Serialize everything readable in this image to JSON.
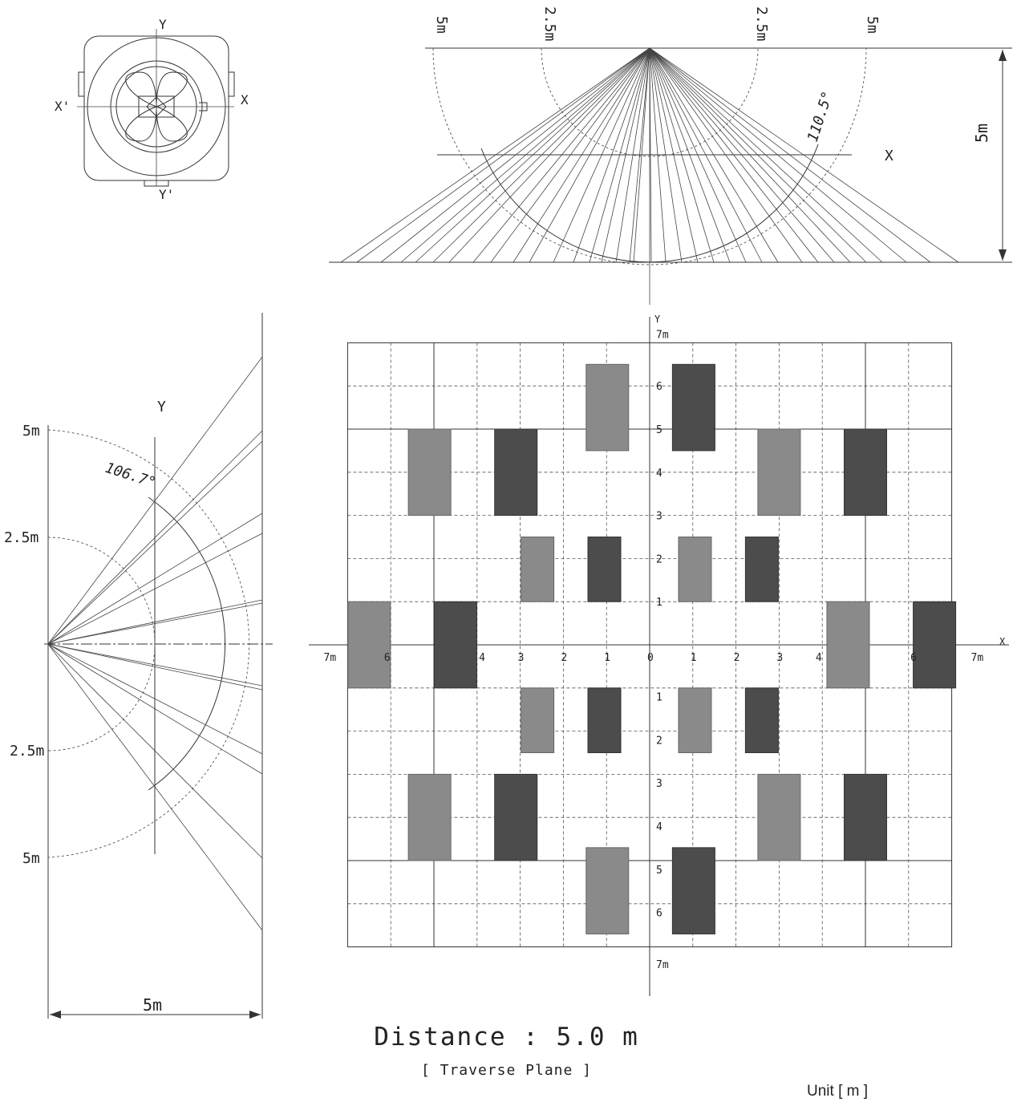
{
  "sensor_outline": {
    "axis_y": "Y",
    "axis_x": "X",
    "axis_x_neg": "X'",
    "axis_y_neg": "Y'"
  },
  "top_view": {
    "ring_labels": [
      "5m",
      "2.5m",
      "2.5m",
      "5m"
    ],
    "angle_label": "110.5°",
    "axis_label": "X",
    "height_label": "5m"
  },
  "side_view": {
    "axis_label": "Y",
    "angle_label": "106.7°",
    "tick_labels": [
      "5m",
      "2.5m",
      "2.5m",
      "5m"
    ],
    "width_label": "5m"
  },
  "plane": {
    "x_axis_label": "X",
    "y_axis_label": "Y",
    "x_tick_labels": [
      "7m",
      "6",
      "4",
      "3",
      "2",
      "1",
      "0",
      "1",
      "2",
      "3",
      "4",
      "6",
      "7m"
    ],
    "y_tick_labels_top": [
      "7m",
      "6",
      "5",
      "4",
      "3",
      "2",
      "1"
    ],
    "y_tick_labels_bottom": [
      "1",
      "2",
      "3",
      "4",
      "5",
      "6",
      "7m"
    ],
    "zones_light": [
      [
        -1,
        6.5,
        5.5
      ],
      [
        3,
        5,
        3
      ],
      [
        -1.1,
        2.5,
        1
      ],
      [
        -5,
        5,
        3
      ]
    ],
    "zones_dark": [
      [
        1,
        6.5,
        5.5
      ],
      [
        -3,
        5,
        3
      ],
      [
        1.1,
        2.5,
        1
      ],
      [
        5,
        5,
        3
      ]
    ]
  },
  "caption": {
    "title": "Distance : 5.0 m",
    "subtitle": "[ Traverse Plane ]",
    "unit": "Unit [ m ]"
  },
  "colors": {
    "light_zone": "#8a8a8a",
    "dark_zone": "#4c4c4c",
    "line": "#333333"
  }
}
